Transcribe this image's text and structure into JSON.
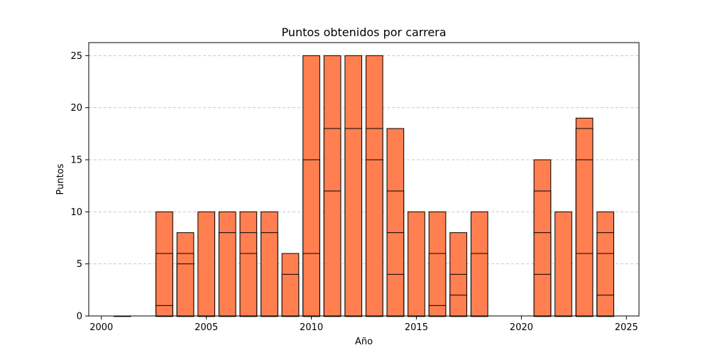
{
  "chart_data": {
    "type": "bar",
    "title": "Puntos obtenidos por carrera",
    "xlabel": "Año",
    "ylabel": "Puntos",
    "xlim": [
      1999.4,
      2025.6
    ],
    "ylim": [
      0,
      26.25
    ],
    "x_ticks": [
      2000,
      2005,
      2010,
      2015,
      2020,
      2025
    ],
    "y_ticks": [
      0,
      5,
      10,
      15,
      20,
      25
    ],
    "grid": {
      "axis": "y",
      "style": "dashed"
    },
    "bar_color": "#ff7f50",
    "edge_color": "#000000",
    "grid_color": "#c8c8c8",
    "legend": "none",
    "races": [
      {
        "year": 2001,
        "points": [
          0
        ]
      },
      {
        "year": 2003,
        "points": [
          10,
          6,
          1,
          0
        ]
      },
      {
        "year": 2004,
        "points": [
          8,
          6,
          5,
          0
        ]
      },
      {
        "year": 2005,
        "points": [
          10,
          0
        ]
      },
      {
        "year": 2006,
        "points": [
          10,
          8,
          0
        ]
      },
      {
        "year": 2007,
        "points": [
          10,
          8,
          6,
          0
        ]
      },
      {
        "year": 2008,
        "points": [
          10,
          8,
          0
        ]
      },
      {
        "year": 2009,
        "points": [
          6,
          4,
          0
        ]
      },
      {
        "year": 2010,
        "points": [
          25,
          15,
          6,
          0
        ]
      },
      {
        "year": 2011,
        "points": [
          25,
          18,
          12,
          0
        ]
      },
      {
        "year": 2012,
        "points": [
          25,
          18,
          0
        ]
      },
      {
        "year": 2013,
        "points": [
          25,
          18,
          15,
          0
        ]
      },
      {
        "year": 2014,
        "points": [
          18,
          12,
          8,
          4,
          0
        ]
      },
      {
        "year": 2015,
        "points": [
          10,
          0
        ]
      },
      {
        "year": 2016,
        "points": [
          10,
          6,
          1,
          0
        ]
      },
      {
        "year": 2017,
        "points": [
          8,
          4,
          2,
          0
        ]
      },
      {
        "year": 2018,
        "points": [
          10,
          6,
          0
        ]
      },
      {
        "year": 2021,
        "points": [
          15,
          12,
          8,
          4,
          0
        ]
      },
      {
        "year": 2022,
        "points": [
          10,
          0
        ]
      },
      {
        "year": 2023,
        "points": [
          19,
          18,
          15,
          6,
          0
        ]
      },
      {
        "year": 2024,
        "points": [
          10,
          8,
          6,
          2,
          0
        ]
      }
    ]
  }
}
